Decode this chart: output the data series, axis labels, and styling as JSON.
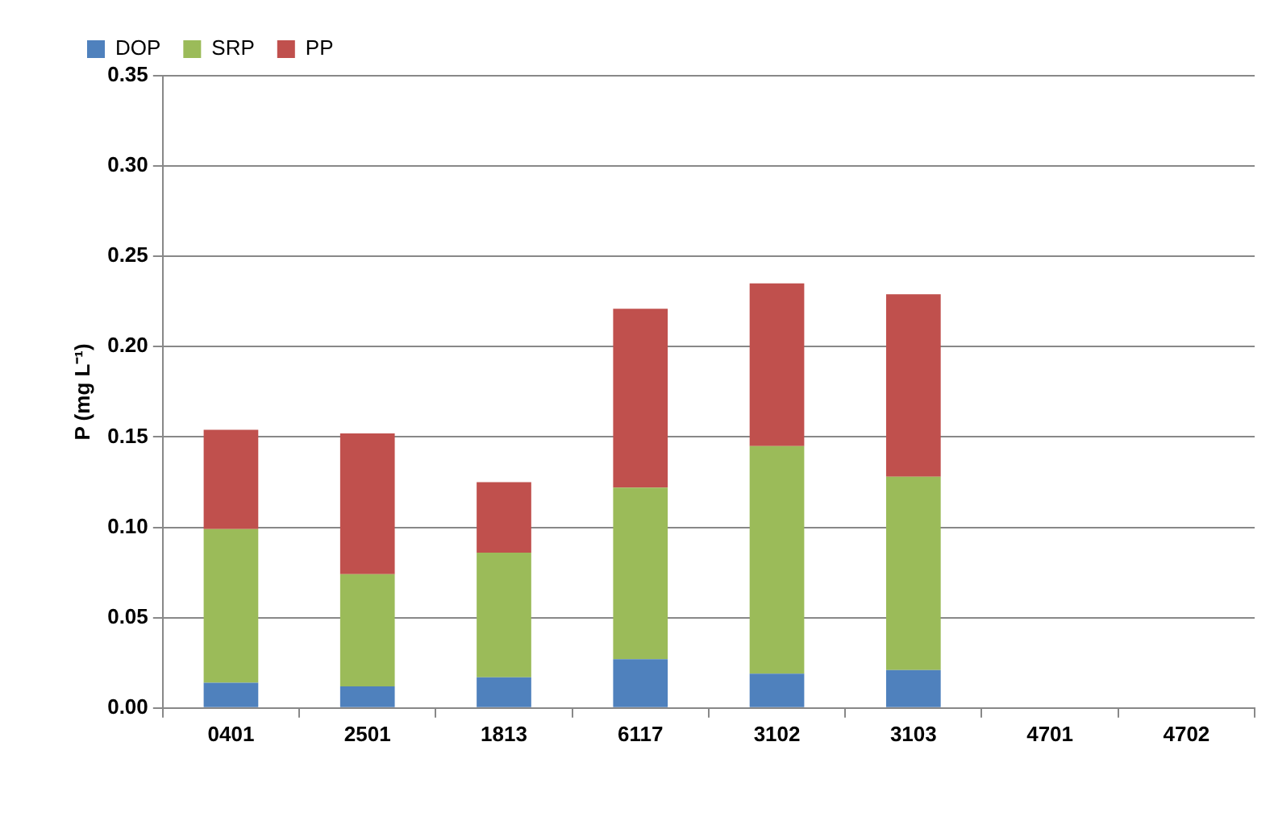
{
  "chart_data": {
    "type": "bar",
    "stacked": true,
    "ylabel": "P (mg L⁻¹)",
    "categories": [
      "0401",
      "2501",
      "1813",
      "6117",
      "3102",
      "3103",
      "4701",
      "4702"
    ],
    "series": [
      {
        "name": "DOP",
        "color": "#4f81bd",
        "values": [
          0.014,
          0.012,
          0.017,
          0.027,
          0.019,
          0.021,
          null,
          null
        ]
      },
      {
        "name": "SRP",
        "color": "#9bbb59",
        "values": [
          0.085,
          0.062,
          0.069,
          0.095,
          0.126,
          0.107,
          null,
          null
        ]
      },
      {
        "name": "PP",
        "color": "#c0504d",
        "values": [
          0.055,
          0.078,
          0.039,
          0.099,
          0.09,
          0.101,
          null,
          null
        ]
      }
    ],
    "ylim": [
      0,
      0.35
    ],
    "yticks": [
      {
        "value": 0,
        "label": "0.00"
      },
      {
        "value": 0.05,
        "label": "0.05"
      },
      {
        "value": 0.1,
        "label": "0.10"
      },
      {
        "value": 0.15,
        "label": "0.15"
      },
      {
        "value": 0.2,
        "label": "0.20"
      },
      {
        "value": 0.25,
        "label": "0.25"
      },
      {
        "value": 0.3,
        "label": "0.30"
      },
      {
        "value": 0.35,
        "label": "0.35"
      }
    ],
    "grid": "y",
    "legend": "top left"
  }
}
